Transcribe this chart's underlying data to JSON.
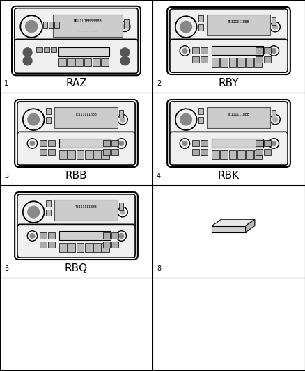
{
  "background_color": "#ffffff",
  "items": [
    {
      "num": "1",
      "label": "RAZ",
      "col": 0,
      "row": 0,
      "type": "RAZ"
    },
    {
      "num": "2",
      "label": "RBY",
      "col": 1,
      "row": 0,
      "type": "RBY"
    },
    {
      "num": "3",
      "label": "RBB",
      "col": 0,
      "row": 1,
      "type": "RBB"
    },
    {
      "num": "4",
      "label": "RBK",
      "col": 1,
      "row": 1,
      "type": "RBK"
    },
    {
      "num": "5",
      "label": "RBQ",
      "col": 0,
      "row": 2,
      "type": "RBQ"
    },
    {
      "num": "8",
      "label": "",
      "col": 1,
      "row": 2,
      "type": "BOX"
    }
  ],
  "num_cols": 2,
  "num_rows": 4,
  "label_fontsize": 11,
  "num_fontsize": 7
}
